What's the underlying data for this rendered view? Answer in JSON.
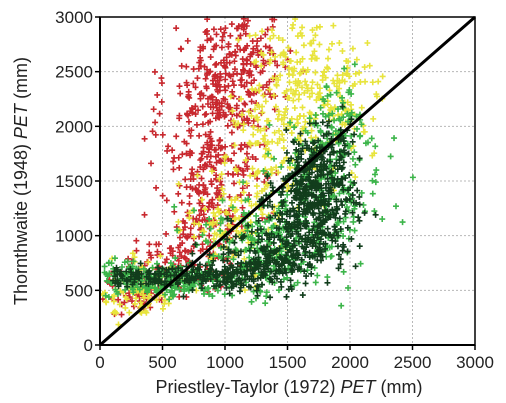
{
  "chart_data": {
    "type": "scatter",
    "title": "",
    "xlabel": {
      "prefix": "Priestley-Taylor (1972) ",
      "italic": "PET",
      "suffix": " (mm)"
    },
    "ylabel": {
      "prefix": "Thornthwaite (1948) ",
      "italic": "PET",
      "suffix": " (mm)"
    },
    "xlim": [
      0,
      3000
    ],
    "ylim": [
      0,
      3000
    ],
    "xticks": [
      0,
      500,
      1000,
      1500,
      2000,
      2500,
      3000
    ],
    "yticks": [
      0,
      500,
      1000,
      1500,
      2000,
      2500,
      3000
    ],
    "grid": true,
    "legend": "none",
    "marker": "plus",
    "reference_line": {
      "name": "1:1 line",
      "x": [
        0,
        3000
      ],
      "y": [
        0,
        3000
      ],
      "color": "#000000"
    },
    "series": [
      {
        "color": "#c8282e",
        "clusters": [
          {
            "cx": 950,
            "cy": 2100,
            "sx": 210,
            "sy": 520,
            "n": 320
          },
          {
            "cx": 1150,
            "cy": 2600,
            "sx": 200,
            "sy": 280,
            "n": 140
          },
          {
            "cx": 850,
            "cy": 1200,
            "sx": 170,
            "sy": 320,
            "n": 160
          },
          {
            "cx": 550,
            "cy": 700,
            "sx": 180,
            "sy": 140,
            "n": 90
          },
          {
            "cx": 250,
            "cy": 480,
            "sx": 140,
            "sy": 110,
            "n": 50
          }
        ]
      },
      {
        "color": "#e8e43c",
        "clusters": [
          {
            "cx": 1600,
            "cy": 2450,
            "sx": 240,
            "sy": 300,
            "n": 170
          },
          {
            "cx": 1400,
            "cy": 1750,
            "sx": 220,
            "sy": 320,
            "n": 140
          },
          {
            "cx": 1050,
            "cy": 1100,
            "sx": 190,
            "sy": 220,
            "n": 110
          },
          {
            "cx": 300,
            "cy": 500,
            "sx": 180,
            "sy": 130,
            "n": 90
          },
          {
            "cx": 1950,
            "cy": 2200,
            "sx": 160,
            "sy": 260,
            "n": 80
          }
        ]
      },
      {
        "color": "#3cb54a",
        "clusters": [
          {
            "cx": 1800,
            "cy": 1400,
            "sx": 230,
            "sy": 340,
            "n": 210
          },
          {
            "cx": 1300,
            "cy": 900,
            "sx": 260,
            "sy": 230,
            "n": 220
          },
          {
            "cx": 600,
            "cy": 580,
            "sx": 280,
            "sy": 80,
            "n": 180
          },
          {
            "cx": 150,
            "cy": 620,
            "sx": 110,
            "sy": 80,
            "n": 60
          },
          {
            "cx": 1900,
            "cy": 2050,
            "sx": 140,
            "sy": 200,
            "n": 60
          }
        ]
      },
      {
        "color": "#123d1c",
        "clusters": [
          {
            "cx": 1700,
            "cy": 1300,
            "sx": 160,
            "sy": 260,
            "n": 420
          },
          {
            "cx": 1400,
            "cy": 820,
            "sx": 200,
            "sy": 170,
            "n": 200
          },
          {
            "cx": 1000,
            "cy": 650,
            "sx": 200,
            "sy": 70,
            "n": 130
          },
          {
            "cx": 400,
            "cy": 620,
            "sx": 240,
            "sy": 50,
            "n": 110
          },
          {
            "cx": 1800,
            "cy": 1700,
            "sx": 110,
            "sy": 160,
            "n": 90
          }
        ]
      }
    ]
  }
}
